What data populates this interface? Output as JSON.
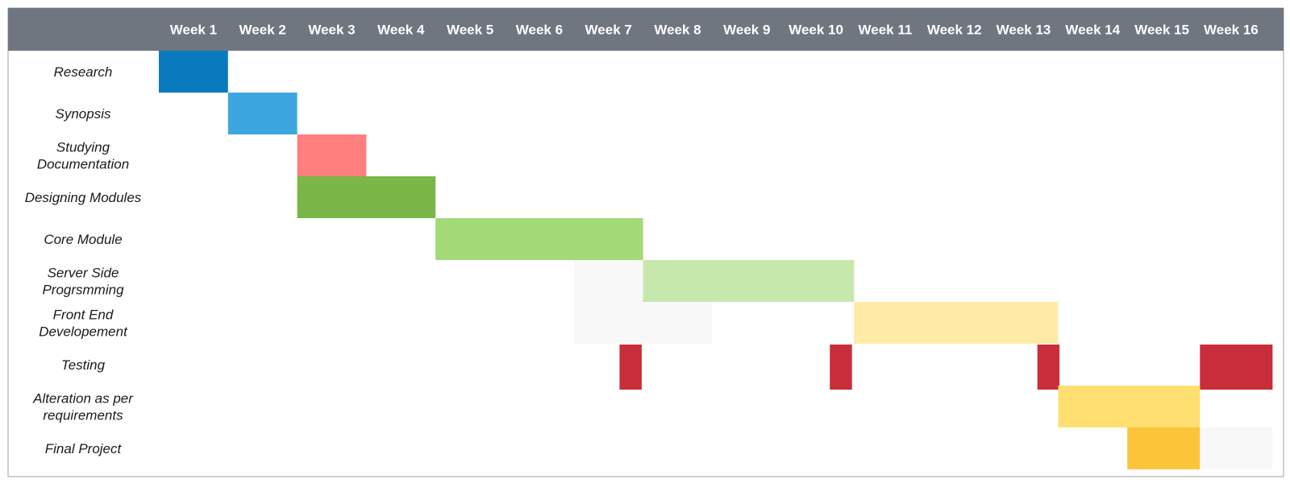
{
  "chart_data": {
    "type": "gantt",
    "title": "",
    "xlabel": "",
    "ylabel": "",
    "grid": false,
    "legend": "none",
    "weeks": [
      "Week 1",
      "Week 2",
      "Week 3",
      "Week 4",
      "Week 5",
      "Week 6",
      "Week 7",
      "Week 8",
      "Week 9",
      "Week 10",
      "Week 11",
      "Week 12",
      "Week 13",
      "Week 14",
      "Week 15",
      "Week 16"
    ],
    "tasks": [
      {
        "label": [
          "Research"
        ],
        "bars": [
          {
            "start": 1,
            "end": 2,
            "color": "#0a7abf"
          }
        ]
      },
      {
        "label": [
          "Synopsis"
        ],
        "bars": [
          {
            "start": 2,
            "end": 3,
            "color": "#3ca6de"
          }
        ]
      },
      {
        "label": [
          "Studying",
          "Documentation"
        ],
        "bars": [
          {
            "start": 3,
            "end": 4,
            "color": "#ff7f7f"
          }
        ]
      },
      {
        "label": [
          "Designing Modules"
        ],
        "bars": [
          {
            "start": 3,
            "end": 5,
            "color": "#7ab648"
          }
        ]
      },
      {
        "label": [
          "Core Module"
        ],
        "bars": [
          {
            "start": 5,
            "end": 8,
            "color": "#a3d977"
          }
        ]
      },
      {
        "label": [
          "Server Side",
          "Progrsmming"
        ],
        "bars": [
          {
            "start": 7,
            "end": 8,
            "color": "#f8f8f8"
          },
          {
            "start": 8,
            "end": 11.05,
            "color": "#c7e8ac"
          }
        ]
      },
      {
        "label": [
          "Front End",
          "Developement"
        ],
        "bars": [
          {
            "start": 7,
            "end": 9,
            "color": "#f8f8f8"
          },
          {
            "start": 11.05,
            "end": 14,
            "color": "#ffeaa6"
          }
        ]
      },
      {
        "label": [
          "Testing"
        ],
        "bars": [
          {
            "start": 7.66,
            "end": 7.98,
            "color": "#c92d39"
          },
          {
            "start": 10.7,
            "end": 11.02,
            "color": "#c92d39"
          },
          {
            "start": 13.7,
            "end": 14.02,
            "color": "#c92d39"
          },
          {
            "start": 16.05,
            "end": 17.1,
            "color": "#c92d39"
          }
        ]
      },
      {
        "label": [
          "Alteration as per",
          "requirements"
        ],
        "bars": [
          {
            "start": 14,
            "end": 16.05,
            "color": "#ffdf71"
          }
        ]
      },
      {
        "label": [
          "Final Project"
        ],
        "bars": [
          {
            "start": 15,
            "end": 16.05,
            "color": "#fcc438"
          },
          {
            "start": 16.05,
            "end": 17.1,
            "color": "#f8f8f8"
          }
        ]
      }
    ]
  },
  "colors": {
    "header_bg": "#6f767f",
    "border": "#9aa0a6"
  }
}
